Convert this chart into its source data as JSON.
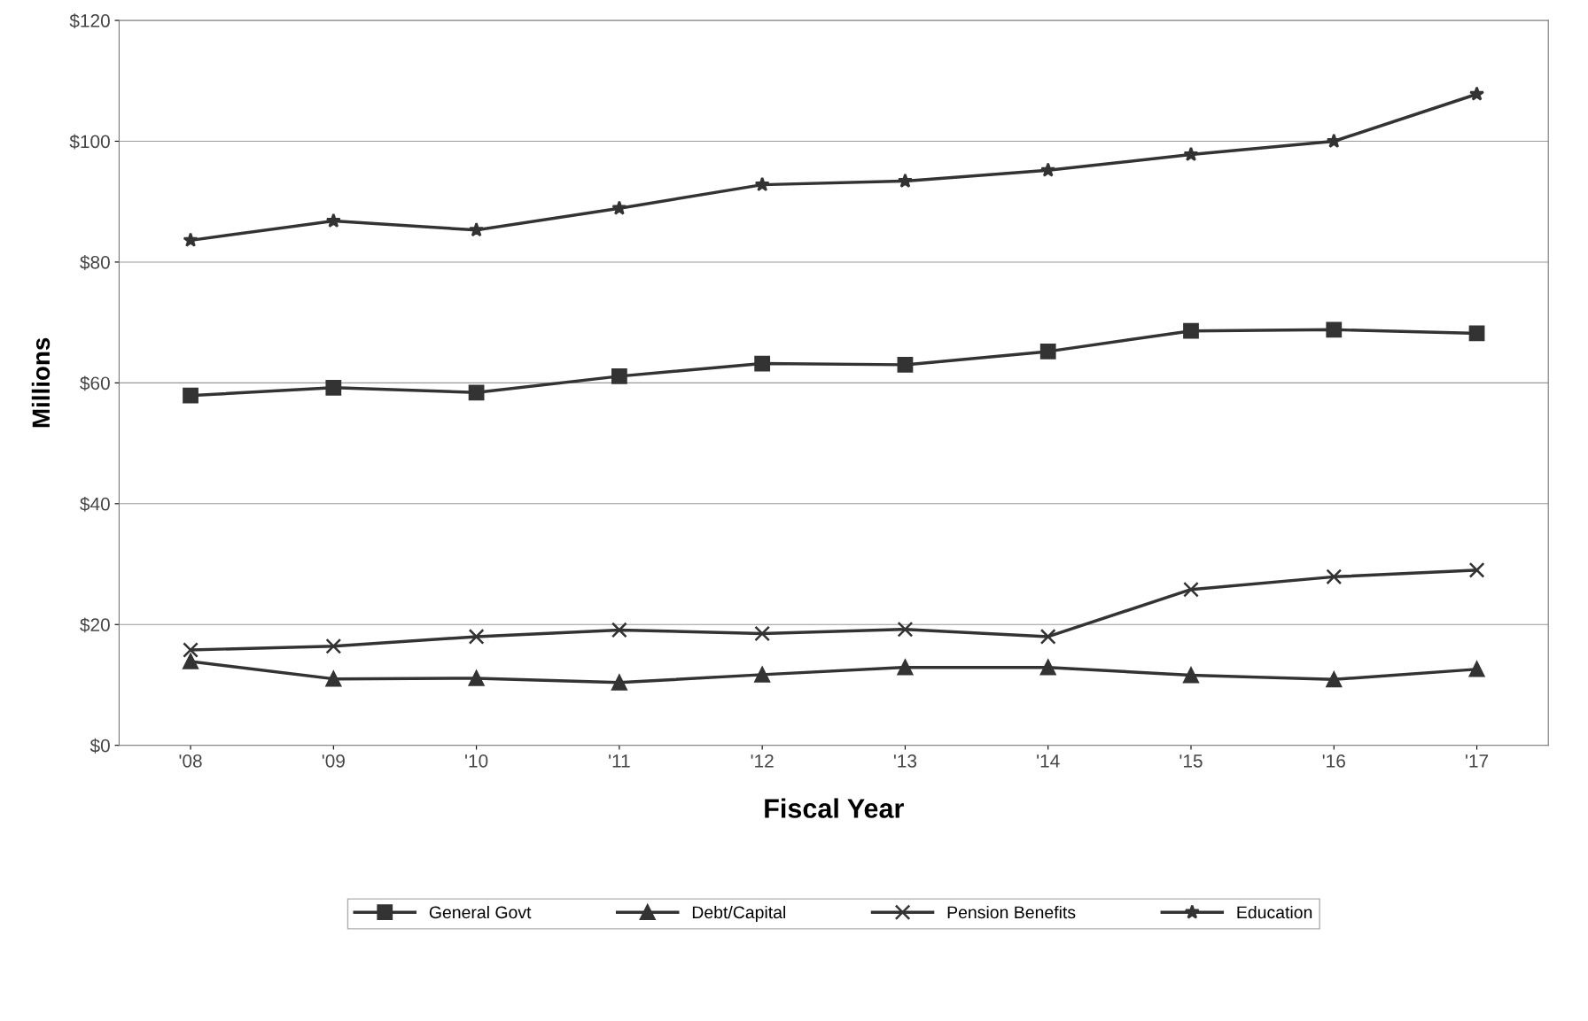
{
  "chart_data": {
    "type": "line",
    "xlabel": "Fiscal Year",
    "ylabel": "Millions",
    "categories": [
      "'08",
      "'09",
      "'10",
      "'11",
      "'12",
      "'13",
      "'14",
      "'15",
      "'16",
      "'17"
    ],
    "series": [
      {
        "name": "General Govt",
        "color": "#333333",
        "marker": "square",
        "values": [
          57.9,
          59.2,
          58.4,
          61.1,
          63.2,
          63.0,
          65.2,
          68.6,
          68.8,
          68.2
        ]
      },
      {
        "name": "Debt/Capital",
        "color": "#333333",
        "marker": "triangle",
        "values": [
          13.9,
          11.0,
          11.1,
          10.4,
          11.7,
          12.9,
          12.9,
          11.6,
          10.9,
          12.6
        ]
      },
      {
        "name": "Pension Benefits",
        "color": "#333333",
        "marker": "cross",
        "values": [
          15.8,
          16.4,
          18.0,
          19.1,
          18.5,
          19.2,
          18.0,
          25.8,
          27.9,
          29.0
        ]
      },
      {
        "name": "Education",
        "color": "#333333",
        "marker": "star",
        "values": [
          83.6,
          86.8,
          85.3,
          88.9,
          92.8,
          93.4,
          95.2,
          97.8,
          100.0,
          107.8
        ]
      }
    ],
    "ylim": [
      0,
      120
    ],
    "yticks": [
      {
        "value": 0,
        "label": "$0"
      },
      {
        "value": 20,
        "label": "$20"
      },
      {
        "value": 40,
        "label": "$40"
      },
      {
        "value": 60,
        "label": "$60"
      },
      {
        "value": 80,
        "label": "$80"
      },
      {
        "value": 100,
        "label": "$100"
      },
      {
        "value": 120,
        "label": "$120"
      }
    ],
    "grid": "y",
    "legend": "bottom",
    "line_style": "solid"
  }
}
